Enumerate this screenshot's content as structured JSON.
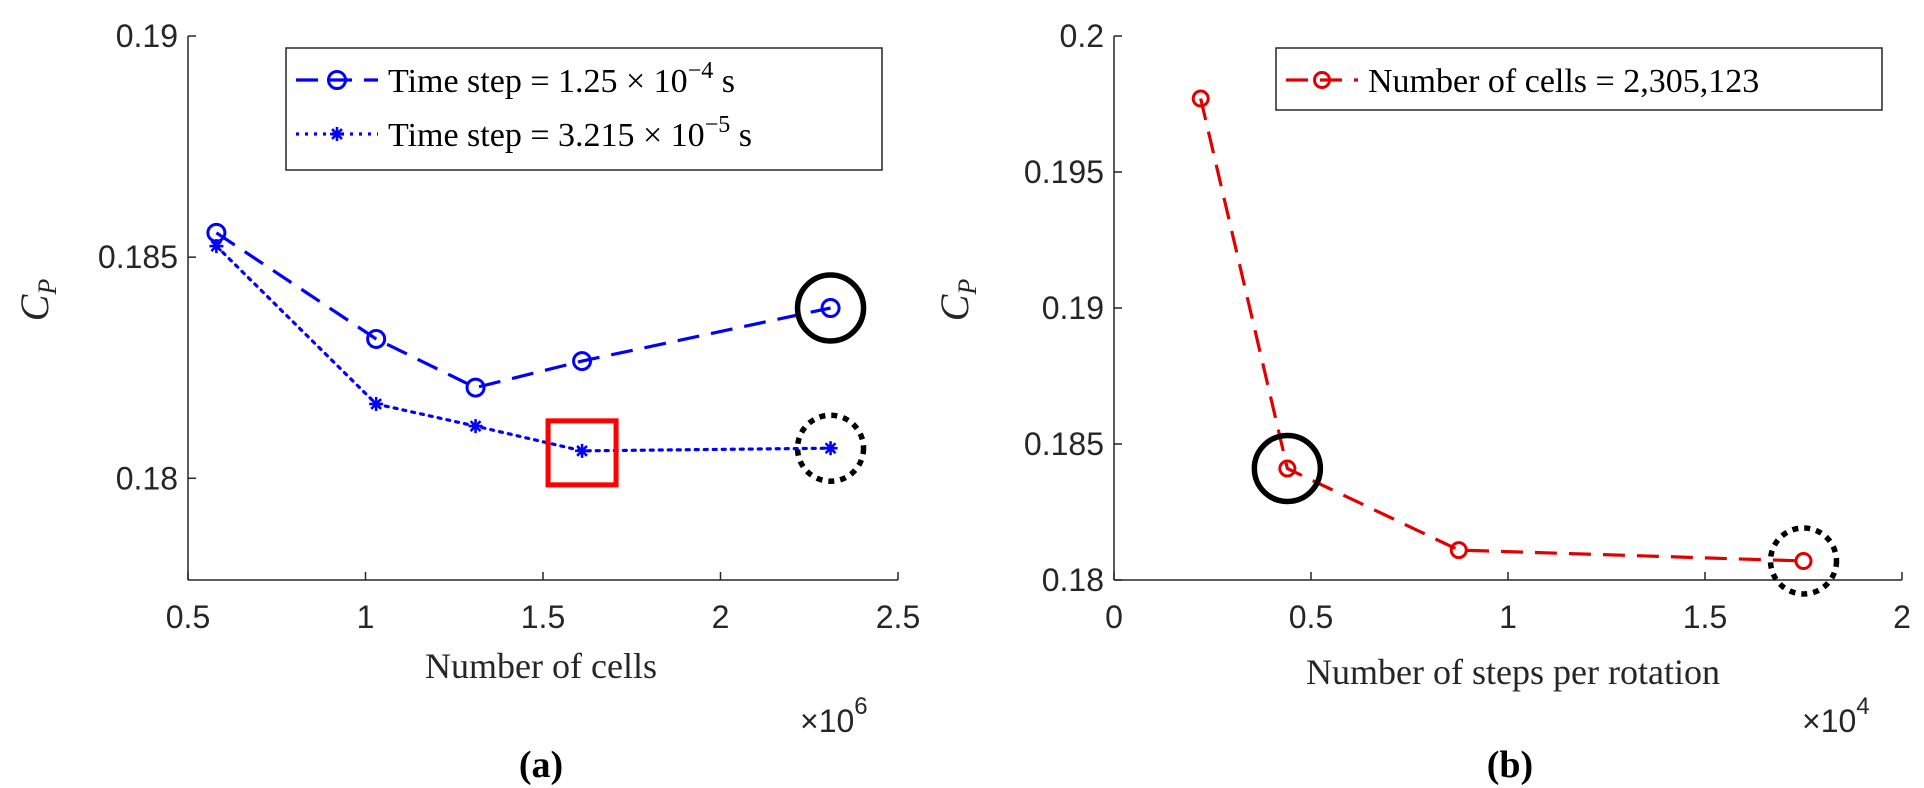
{
  "captions": {
    "a": "(a)",
    "b": "(b)"
  },
  "chart_data": [
    {
      "type": "line",
      "panel": "(a)",
      "xlabel": "Number of cells",
      "ylabel": "C_P",
      "ylabel_main": "C",
      "ylabel_sub": "P",
      "x_multiplier": "×10",
      "x_multiplier_exp": "6",
      "xlim": [
        0.5,
        2.5
      ],
      "ylim": [
        0.1777,
        0.19
      ],
      "x_ticks": [
        0.5,
        1,
        1.5,
        2,
        2.5
      ],
      "x_tick_labels": [
        "0.5",
        "1",
        "1.5",
        "2",
        "2.5"
      ],
      "y_ticks": [
        0.18,
        0.185,
        0.19
      ],
      "y_tick_labels": [
        "0.18",
        "0.185",
        "0.19"
      ],
      "legend_position": "top-right",
      "series": [
        {
          "name": "Time step = 1.25 × 10⁻⁴ s",
          "legend_main": "Time step = 1.25 × 10",
          "legend_exp": "−4",
          "legend_unit": " s",
          "color": "#0000ff",
          "line_style": "dashed",
          "marker": "circle",
          "x": [
            0.58,
            1.03,
            1.31,
            1.61,
            2.31
          ],
          "y": [
            0.18555,
            0.18315,
            0.18205,
            0.18265,
            0.18385
          ]
        },
        {
          "name": "Time step = 3.215 × 10⁻⁵ s",
          "legend_main": "Time step = 3.215 × 10",
          "legend_exp": "−5",
          "legend_unit": " s",
          "color": "#0000ff",
          "line_style": "dotted",
          "marker": "asterisk",
          "x": [
            0.58,
            1.03,
            1.31,
            1.61,
            2.31
          ],
          "y": [
            0.18525,
            0.18168,
            0.18118,
            0.18062,
            0.18068
          ]
        }
      ],
      "annotations": [
        {
          "shape": "circle",
          "style": "solid",
          "color": "#000000",
          "x": 2.31,
          "y": 0.18385
        },
        {
          "shape": "circle",
          "style": "dotted",
          "color": "#000000",
          "x": 2.31,
          "y": 0.18068
        },
        {
          "shape": "square",
          "style": "solid",
          "color": "#ff0000",
          "x": 1.61,
          "y": 0.18062
        }
      ]
    },
    {
      "type": "line",
      "panel": "(b)",
      "xlabel": "Number of steps per rotation",
      "ylabel": "C_P",
      "ylabel_main": "C",
      "ylabel_sub": "P",
      "x_multiplier": "×10",
      "x_multiplier_exp": "4",
      "xlim": [
        0,
        2
      ],
      "ylim": [
        0.18,
        0.2
      ],
      "x_ticks": [
        0,
        0.5,
        1,
        1.5,
        2
      ],
      "x_tick_labels": [
        "0",
        "0.5",
        "1",
        "1.5",
        "2"
      ],
      "y_ticks": [
        0.18,
        0.185,
        0.19,
        0.195,
        0.2
      ],
      "y_tick_labels": [
        "0.18",
        "0.185",
        "0.19",
        "0.195",
        "0.2"
      ],
      "legend_position": "top-right",
      "series": [
        {
          "name": "Number of cells = 2,305,123",
          "legend_main": "Number of cells = 2,305,123",
          "legend_exp": "",
          "legend_unit": "",
          "color": "#e00000",
          "line_style": "dashed",
          "marker": "circle-small",
          "x": [
            0.22,
            0.44,
            0.875,
            1.75
          ],
          "y": [
            0.1977,
            0.1841,
            0.1811,
            0.1807
          ]
        }
      ],
      "annotations": [
        {
          "shape": "circle",
          "style": "solid",
          "color": "#000000",
          "x": 0.44,
          "y": 0.1841
        },
        {
          "shape": "circle",
          "style": "dotted",
          "color": "#000000",
          "x": 1.75,
          "y": 0.1807
        }
      ]
    }
  ]
}
